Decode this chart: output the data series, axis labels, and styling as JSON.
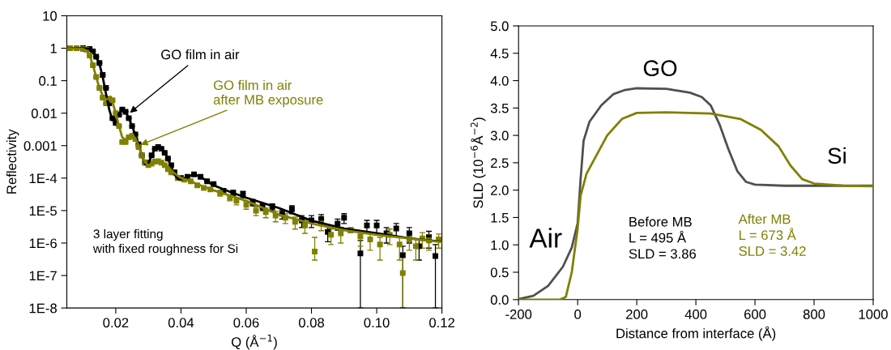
{
  "chart_data": [
    {
      "type": "scatter",
      "xlabel": "Q (Å$^{−1}$)",
      "ylabel": "Reflectivity",
      "log": "y",
      "grid": false,
      "xlim": [
        0.005,
        0.12
      ],
      "xticks": [
        {
          "value": 0.02,
          "label": "0.02"
        },
        {
          "value": 0.04,
          "label": "0.04"
        },
        {
          "value": 0.06,
          "label": "0.06"
        },
        {
          "value": 0.08,
          "label": "0.08"
        },
        {
          "value": 0.1,
          "label": "0.10"
        },
        {
          "value": 0.12,
          "label": "0.12"
        }
      ],
      "ylim": [
        1e-08,
        10
      ],
      "yticks": [
        {
          "value": 1e-08,
          "label": "1E-8"
        },
        {
          "value": 1e-07,
          "label": "1E-7"
        },
        {
          "value": 1e-06,
          "label": "1E-6"
        },
        {
          "value": 1e-05,
          "label": "1E-5"
        },
        {
          "value": 0.0001,
          "label": "1E-4"
        },
        {
          "value": 0.001,
          "label": "0.001"
        },
        {
          "value": 0.01,
          "label": "0.01"
        },
        {
          "value": 0.1,
          "label": "0.1"
        },
        {
          "value": 1,
          "label": "1"
        },
        {
          "value": 10,
          "label": "10"
        }
      ],
      "series": [
        {
          "type": "scatter",
          "color": "#000000",
          "marker": "square",
          "x": [
            0.006,
            0.008,
            0.01,
            0.012,
            0.013,
            0.014,
            0.015,
            0.016,
            0.017,
            0.018,
            0.019,
            0.02,
            0.021,
            0.022,
            0.023,
            0.024,
            0.025,
            0.026,
            0.027,
            0.028,
            0.029,
            0.03,
            0.031,
            0.032,
            0.033,
            0.034,
            0.035,
            0.036,
            0.037,
            0.038,
            0.04,
            0.042,
            0.044,
            0.046,
            0.048,
            0.05,
            0.053,
            0.056,
            0.059,
            0.062,
            0.065,
            0.068,
            0.071,
            0.074,
            0.077,
            0.08,
            0.083,
            0.085,
            0.088,
            0.09,
            0.092,
            0.095,
            0.097,
            0.1,
            0.103,
            0.106,
            0.108,
            0.11,
            0.113,
            0.116,
            0.118
          ],
          "values": [
            1.0,
            1.0,
            1.0,
            0.95,
            0.8,
            0.55,
            0.35,
            0.15,
            0.06,
            0.02,
            0.007,
            0.005,
            0.009,
            0.013,
            0.011,
            0.007,
            0.004,
            0.0022,
            0.0011,
            0.0005,
            0.0003,
            0.0003,
            0.0005,
            0.0008,
            0.0009,
            0.0008,
            0.0006,
            0.0004,
            0.00025,
            0.00015,
            0.0001,
            0.00011,
            0.00013,
            0.00011,
            8e-05,
            6.5e-05,
            4e-05,
            3.5e-05,
            3.2e-05,
            1.8e-05,
            1.3e-05,
            1.3e-05,
            8e-06,
            1.1e-05,
            5e-06,
            5e-06,
            5.5e-06,
            2.2e-06,
            4e-06,
            6e-06,
            2.5e-06,
            4.8e-07,
            3.5e-06,
            3.5e-06,
            2e-06,
            2.8e-06,
            4.2e-07,
            2e-06,
            8e-07,
            1.5e-06,
            4e-07
          ],
          "errors": [
            null,
            null,
            null,
            null,
            null,
            null,
            null,
            null,
            null,
            null,
            null,
            null,
            null,
            null,
            null,
            null,
            null,
            null,
            null,
            null,
            null,
            null,
            null,
            null,
            null,
            null,
            null,
            null,
            null,
            null,
            null,
            null,
            null,
            null,
            null,
            null,
            8e-06,
            7e-06,
            7e-06,
            4e-06,
            3e-06,
            3e-06,
            2.5e-06,
            3e-06,
            2e-06,
            2e-06,
            2e-06,
            1.1e-06,
            1.5e-06,
            2e-06,
            null,
            [
              1e-08,
              1.2e-06
            ],
            1.5e-06,
            1.5e-06,
            1e-06,
            1.2e-06,
            [
              1e-08,
              8e-07
            ],
            1e-06,
            5e-07,
            8e-07,
            [
              1e-08,
              9e-07
            ]
          ]
        },
        {
          "type": "scatter",
          "color": "#808000",
          "marker": "square",
          "x": [
            0.006,
            0.008,
            0.01,
            0.011,
            0.012,
            0.013,
            0.014,
            0.015,
            0.016,
            0.017,
            0.018,
            0.019,
            0.02,
            0.021,
            0.022,
            0.023,
            0.024,
            0.025,
            0.026,
            0.027,
            0.028,
            0.029,
            0.03,
            0.031,
            0.032,
            0.033,
            0.034,
            0.035,
            0.036,
            0.037,
            0.039,
            0.041,
            0.043,
            0.045,
            0.047,
            0.049,
            0.052,
            0.055,
            0.057,
            0.06,
            0.063,
            0.066,
            0.069,
            0.072,
            0.075,
            0.078,
            0.081,
            0.083,
            0.086,
            0.089,
            0.092,
            0.095,
            0.098,
            0.101,
            0.104,
            0.107,
            0.108,
            0.11,
            0.112,
            0.114,
            0.116,
            0.119
          ],
          "values": [
            1.0,
            1.0,
            0.95,
            0.9,
            0.6,
            0.3,
            0.13,
            0.06,
            0.03,
            0.02,
            0.028,
            0.025,
            0.01,
            0.004,
            0.0013,
            0.0013,
            0.0018,
            0.002,
            0.0016,
            0.0009,
            0.0005,
            0.0003,
            0.00025,
            0.00028,
            0.00032,
            0.00033,
            0.0003,
            0.00025,
            0.00019,
            0.00015,
            0.0001,
            9e-05,
            8e-05,
            6e-05,
            5e-05,
            4.5e-05,
            3.5e-05,
            2.5e-05,
            2e-05,
            1.5e-05,
            1e-05,
            9e-06,
            7e-06,
            6e-06,
            4.5e-06,
            3.5e-06,
            5.5e-07,
            4e-06,
            1.8e-06,
            2e-06,
            2.5e-06,
            1.6e-06,
            1.3e-06,
            9e-07,
            1.8e-06,
            9e-07,
            1.2e-07,
            1.3e-06,
            8e-07,
            1.4e-06,
            1.2e-06,
            1.3e-06
          ],
          "errors": [
            null,
            null,
            null,
            null,
            null,
            null,
            null,
            null,
            null,
            null,
            null,
            null,
            null,
            null,
            null,
            null,
            null,
            null,
            null,
            null,
            null,
            null,
            null,
            null,
            null,
            null,
            null,
            null,
            null,
            null,
            null,
            null,
            null,
            null,
            null,
            null,
            7e-06,
            5e-06,
            5e-06,
            4e-06,
            3e-06,
            3e-06,
            2.5e-06,
            2e-06,
            1.8e-06,
            1.5e-06,
            [
              3e-07,
              1.5e-06
            ],
            1.6e-06,
            9e-07,
            1e-06,
            null,
            8e-07,
            7e-07,
            6e-07,
            9e-07,
            6e-07,
            [
              1e-08,
              5e-07
            ],
            7e-07,
            5e-07,
            7e-07,
            6e-07,
            6e-07
          ]
        },
        {
          "type": "line",
          "color": "#000000",
          "x": [
            0.005,
            0.01,
            0.012,
            0.013,
            0.014,
            0.015,
            0.016,
            0.017,
            0.018,
            0.019,
            0.02,
            0.021,
            0.022,
            0.023,
            0.024,
            0.025,
            0.026,
            0.027,
            0.028,
            0.029,
            0.03,
            0.031,
            0.032,
            0.033,
            0.034,
            0.035,
            0.036,
            0.037,
            0.038,
            0.039,
            0.04,
            0.042,
            0.044,
            0.046,
            0.048,
            0.05,
            0.055,
            0.06,
            0.07,
            0.08,
            0.09,
            0.1,
            0.11,
            0.12
          ],
          "values": [
            1,
            1,
            0.95,
            0.8,
            0.55,
            0.33,
            0.13,
            0.04,
            0.013,
            0.006,
            0.006,
            0.01,
            0.013,
            0.011,
            0.007,
            0.004,
            0.0022,
            0.0011,
            0.0005,
            0.00027,
            0.00028,
            0.0005,
            0.0008,
            0.00088,
            0.0008,
            0.0006,
            0.0004,
            0.00022,
            0.00013,
            9.5e-05,
            9e-05,
            0.00011,
            0.00013,
            0.00011,
            8e-05,
            6e-05,
            3.8e-05,
            2.5e-05,
            1.2e-05,
            4.9e-06,
            2.8e-06,
            2e-06,
            1.4e-06,
            1.1e-06
          ]
        },
        {
          "type": "line",
          "color": "#808000",
          "x": [
            0.005,
            0.01,
            0.011,
            0.012,
            0.013,
            0.014,
            0.015,
            0.016,
            0.017,
            0.018,
            0.019,
            0.02,
            0.021,
            0.022,
            0.023,
            0.024,
            0.025,
            0.026,
            0.027,
            0.028,
            0.029,
            0.03,
            0.032,
            0.034,
            0.036,
            0.038,
            0.04,
            0.043,
            0.045,
            0.05,
            0.06,
            0.07,
            0.08,
            0.09,
            0.1,
            0.12
          ],
          "values": [
            1,
            0.95,
            0.85,
            0.6,
            0.3,
            0.13,
            0.06,
            0.035,
            0.027,
            0.028,
            0.022,
            0.01,
            0.004,
            0.0018,
            0.0015,
            0.0019,
            0.0021,
            0.0017,
            0.001,
            0.0005,
            0.0003,
            0.00025,
            0.0003,
            0.00033,
            0.00022,
            0.00014,
            0.0001,
            8e-05,
            6.5e-05,
            4.2e-05,
            2e-05,
            7.5e-06,
            4e-06,
            2.5e-06,
            1.8e-06,
            1.07e-06
          ]
        }
      ],
      "annotations": [
        {
          "text": "GO film in air",
          "x": 0.0238,
          "y": 0.0093
        },
        {
          "text": "GO film in air\nafter MB exposure",
          "x": 0.027,
          "y": 0.001
        },
        "3 layer fitting\nwith fixed roughness for Si"
      ]
    },
    {
      "type": "line",
      "xlabel": "Distance from interface (Å)",
      "ylabel": "SLD (10$^{−6}$Å$^{−2}$)",
      "grid": false,
      "xlim": [
        -200,
        1000
      ],
      "xticks": [
        -200,
        0,
        200,
        400,
        600,
        800,
        1000
      ],
      "ylim": [
        0,
        5
      ],
      "yticks": [
        {
          "value": 0,
          "label": "0.0"
        },
        {
          "value": 0.5,
          "label": "0.5"
        },
        {
          "value": 1,
          "label": "1.0"
        },
        {
          "value": 1.5,
          "label": "1.5"
        },
        {
          "value": 2,
          "label": "2.0"
        },
        {
          "value": 2.5,
          "label": "2.5"
        },
        {
          "value": 3,
          "label": "3.0"
        },
        {
          "value": 3.5,
          "label": "3.5"
        },
        {
          "value": 4,
          "label": "4.0"
        },
        {
          "value": 4.5,
          "label": "4.5"
        },
        {
          "value": 5,
          "label": "5.0"
        }
      ],
      "series": [
        {
          "color": "#505050",
          "x": [
            -200,
            -150,
            -100,
            -50,
            -20,
            0,
            10,
            20,
            40,
            80,
            120,
            160,
            200,
            300,
            380,
            420,
            450,
            480,
            510,
            540,
            570,
            600,
            700,
            1000
          ],
          "values": [
            0.01,
            0.07,
            0.25,
            0.6,
            0.95,
            1.4,
            2.2,
            2.9,
            3.25,
            3.55,
            3.75,
            3.83,
            3.86,
            3.85,
            3.78,
            3.7,
            3.55,
            3.2,
            2.75,
            2.35,
            2.15,
            2.1,
            2.08,
            2.08
          ]
        },
        {
          "color": "#808000",
          "x": [
            -200,
            -60,
            -40,
            -20,
            0,
            10,
            30,
            60,
            100,
            150,
            200,
            300,
            450,
            550,
            620,
            680,
            720,
            760,
            800,
            900,
            1000
          ],
          "values": [
            0.0,
            0.0,
            0.05,
            0.5,
            1.3,
            1.9,
            2.3,
            2.6,
            3.0,
            3.3,
            3.41,
            3.42,
            3.4,
            3.3,
            3.1,
            2.8,
            2.45,
            2.2,
            2.12,
            2.08,
            2.07
          ]
        }
      ],
      "annotations": [
        "GO",
        "Air",
        "Si",
        "Before MB\nL = 495 Å\nSLD = 3.86",
        "After MB\nL = 673 Å\nSLD = 3.42"
      ]
    }
  ]
}
